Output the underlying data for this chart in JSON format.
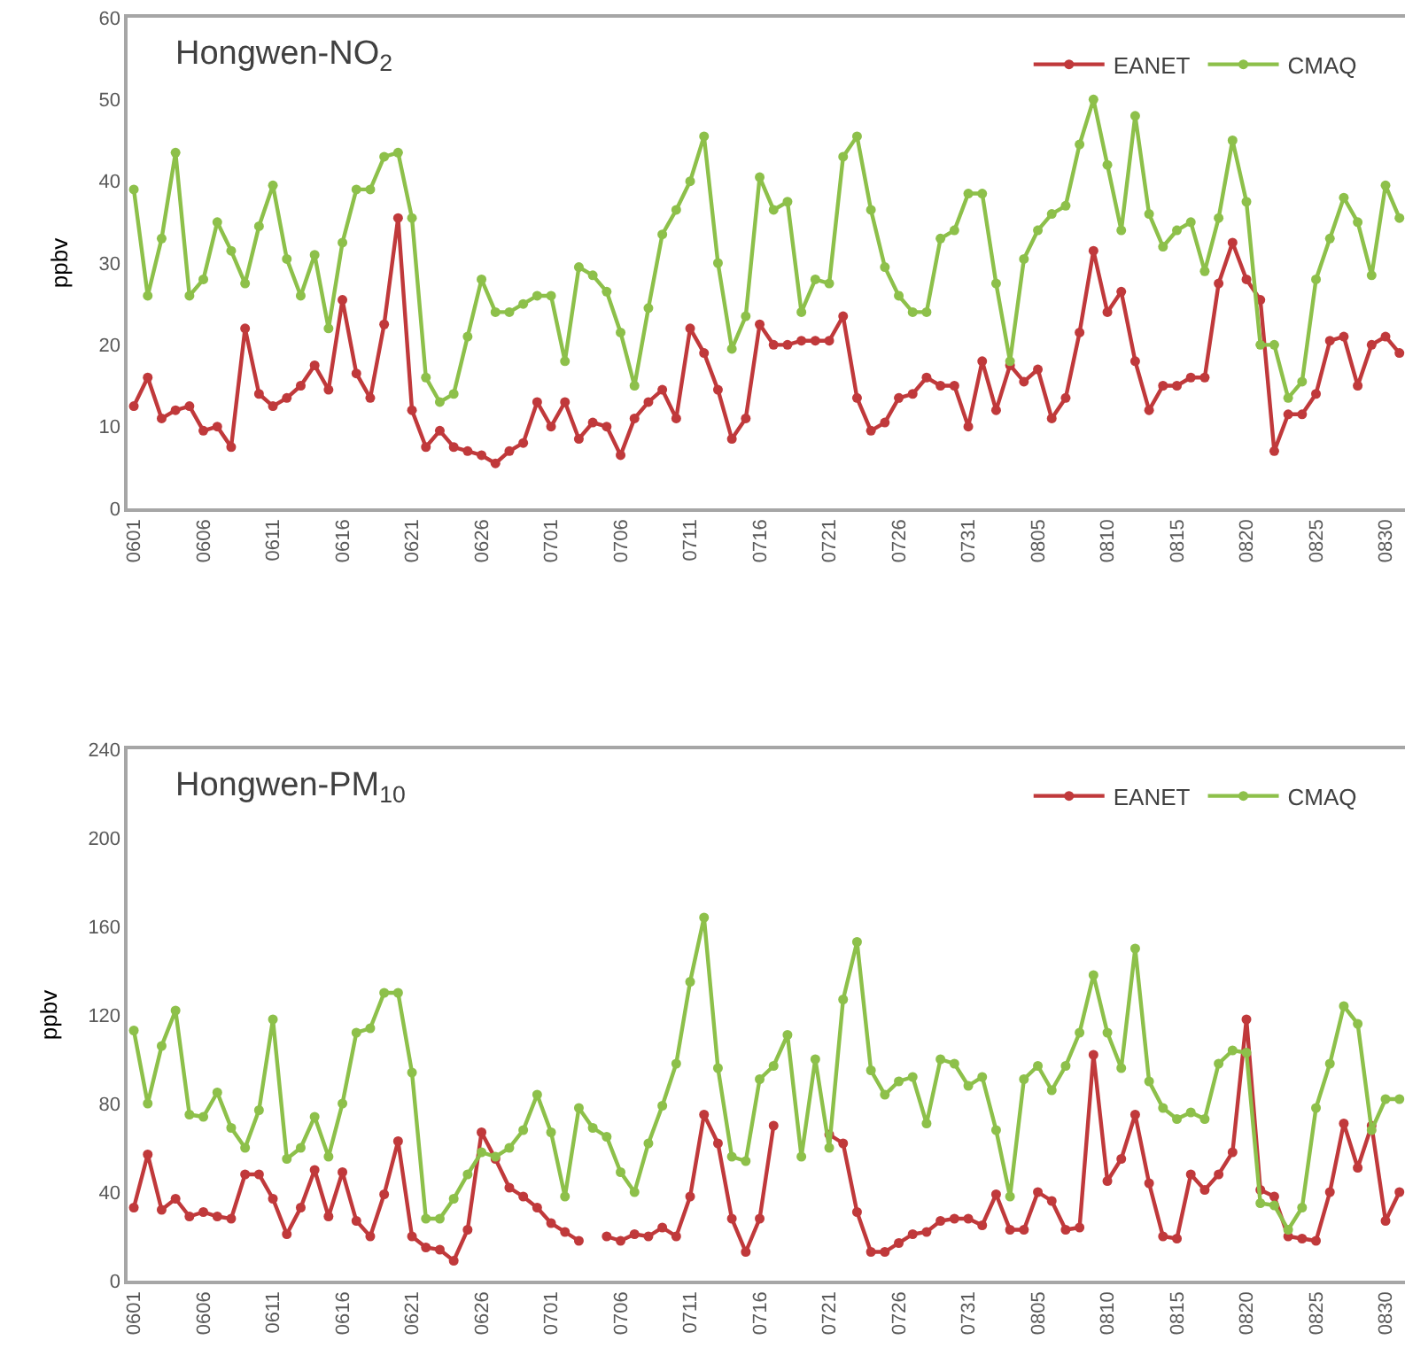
{
  "chart_data": [
    {
      "type": "line",
      "title": "Hongwen-NO$_{2}$",
      "ylabel": "ppbv",
      "ylim": [
        0,
        60
      ],
      "yticks": [
        0,
        10,
        20,
        30,
        40,
        50,
        60
      ],
      "grid": false,
      "legend": "top right",
      "marker": "circle",
      "line_style": "solid",
      "categories": [
        "0601",
        null,
        null,
        null,
        null,
        "0606",
        null,
        null,
        null,
        null,
        "0611",
        null,
        null,
        null,
        null,
        "0616",
        null,
        null,
        null,
        null,
        "0621",
        null,
        null,
        null,
        null,
        "0626",
        null,
        null,
        null,
        null,
        "0701",
        null,
        null,
        null,
        null,
        "0706",
        null,
        null,
        null,
        null,
        "0711",
        null,
        null,
        null,
        null,
        "0716",
        null,
        null,
        null,
        null,
        "0721",
        null,
        null,
        null,
        null,
        "0726",
        null,
        null,
        null,
        null,
        "0731",
        null,
        null,
        null,
        null,
        "0805",
        null,
        null,
        null,
        null,
        "0810",
        null,
        null,
        null,
        null,
        "0815",
        null,
        null,
        null,
        null,
        "0820",
        null,
        null,
        null,
        null,
        "0825",
        null,
        null,
        null,
        null,
        "0830",
        null
      ],
      "series": [
        {
          "name": "EANET",
          "color": "#c0393b",
          "values": [
            12.5,
            16,
            11,
            12,
            12.5,
            9.5,
            10,
            7.5,
            22,
            14,
            12.5,
            13.5,
            15,
            17.5,
            14.5,
            25.5,
            16.5,
            13.5,
            22.5,
            35.5,
            12,
            7.5,
            9.5,
            7.5,
            7,
            6.5,
            5.5,
            7,
            8,
            13,
            10,
            13,
            8.5,
            10.5,
            10,
            6.5,
            11,
            13,
            14.5,
            11,
            22,
            19,
            14.5,
            8.5,
            11,
            22.5,
            20,
            20,
            20.5,
            20.5,
            20.5,
            23.5,
            13.5,
            9.5,
            10.5,
            13.5,
            14,
            16,
            15,
            15,
            10,
            18,
            12,
            17.5,
            15.5,
            17,
            11,
            13.5,
            21.5,
            31.5,
            24,
            26.5,
            18,
            12,
            15,
            15,
            16,
            16,
            27.5,
            32.5,
            28,
            25.5,
            7,
            11.5,
            11.5,
            14,
            20.5,
            21,
            15,
            20,
            21,
            19
          ]
        },
        {
          "name": "CMAQ",
          "color": "#8dc04a",
          "values": [
            39,
            26,
            33,
            43.5,
            26,
            28,
            35,
            31.5,
            27.5,
            34.5,
            39.5,
            30.5,
            26,
            31,
            22,
            32.5,
            39,
            39,
            43,
            43.5,
            35.5,
            16,
            13,
            14,
            21,
            28,
            24,
            24,
            25,
            26,
            26,
            18,
            29.5,
            28.5,
            26.5,
            21.5,
            15,
            24.5,
            33.5,
            36.5,
            40,
            45.5,
            30,
            19.5,
            23.5,
            40.5,
            36.5,
            37.5,
            24,
            28,
            27.5,
            43,
            45.5,
            36.5,
            29.5,
            26,
            24,
            24,
            33,
            34,
            38.5,
            38.5,
            27.5,
            18,
            30.5,
            34,
            36,
            37,
            44.5,
            50,
            42,
            34,
            48,
            36,
            32,
            34,
            35,
            29,
            35.5,
            45,
            37.5,
            20,
            20,
            13.5,
            15.5,
            28,
            33,
            38,
            35,
            28.5,
            39.5,
            35.5
          ]
        }
      ]
    },
    {
      "type": "line",
      "title": "Hongwen-PM$_{10}$",
      "ylabel": "ppbv",
      "ylim": [
        0,
        240
      ],
      "yticks": [
        0,
        40,
        80,
        120,
        160,
        200,
        240
      ],
      "grid": false,
      "legend": "top right",
      "marker": "circle",
      "line_style": "solid",
      "categories": [
        "0601",
        null,
        null,
        null,
        null,
        "0606",
        null,
        null,
        null,
        null,
        "0611",
        null,
        null,
        null,
        null,
        "0616",
        null,
        null,
        null,
        null,
        "0621",
        null,
        null,
        null,
        null,
        "0626",
        null,
        null,
        null,
        null,
        "0701",
        null,
        null,
        null,
        null,
        "0706",
        null,
        null,
        null,
        null,
        "0711",
        null,
        null,
        null,
        null,
        "0716",
        null,
        null,
        null,
        null,
        "0721",
        null,
        null,
        null,
        null,
        "0726",
        null,
        null,
        null,
        null,
        "0731",
        null,
        null,
        null,
        null,
        "0805",
        null,
        null,
        null,
        null,
        "0810",
        null,
        null,
        null,
        null,
        "0815",
        null,
        null,
        null,
        null,
        "0820",
        null,
        null,
        null,
        null,
        "0825",
        null,
        null,
        null,
        null,
        "0830",
        null
      ],
      "series": [
        {
          "name": "EANET",
          "color": "#c0393b",
          "values": [
            33,
            57,
            32,
            37,
            29,
            31,
            29,
            28,
            48,
            48,
            37,
            21,
            33,
            50,
            29,
            49,
            27,
            20,
            39,
            63,
            20,
            15,
            14,
            9,
            23,
            67,
            55,
            42,
            38,
            33,
            26,
            22,
            18,
            null,
            20,
            18,
            21,
            20,
            24,
            20,
            38,
            75,
            62,
            28,
            13,
            28,
            70,
            null,
            null,
            null,
            66,
            62,
            31,
            13,
            13,
            17,
            21,
            22,
            27,
            28,
            28,
            25,
            39,
            23,
            23,
            40,
            36,
            23,
            24,
            102,
            45,
            55,
            75,
            44,
            20,
            19,
            48,
            41,
            48,
            58,
            118,
            41,
            38,
            20,
            19,
            18,
            40,
            71,
            51,
            70,
            27,
            40
          ]
        },
        {
          "name": "CMAQ",
          "color": "#8dc04a",
          "values": [
            113,
            80,
            106,
            122,
            75,
            74,
            85,
            69,
            60,
            77,
            118,
            55,
            60,
            74,
            56,
            80,
            112,
            114,
            130,
            130,
            94,
            28,
            28,
            37,
            48,
            58,
            56,
            60,
            68,
            84,
            67,
            38,
            78,
            69,
            65,
            49,
            40,
            62,
            79,
            98,
            135,
            164,
            96,
            56,
            54,
            91,
            97,
            111,
            56,
            100,
            60,
            127,
            153,
            95,
            84,
            90,
            92,
            71,
            100,
            98,
            88,
            92,
            68,
            38,
            91,
            97,
            86,
            97,
            112,
            138,
            112,
            96,
            150,
            90,
            78,
            73,
            76,
            73,
            98,
            104,
            103,
            35,
            34,
            23,
            33,
            78,
            98,
            124,
            116,
            68,
            82,
            82
          ]
        }
      ]
    }
  ]
}
